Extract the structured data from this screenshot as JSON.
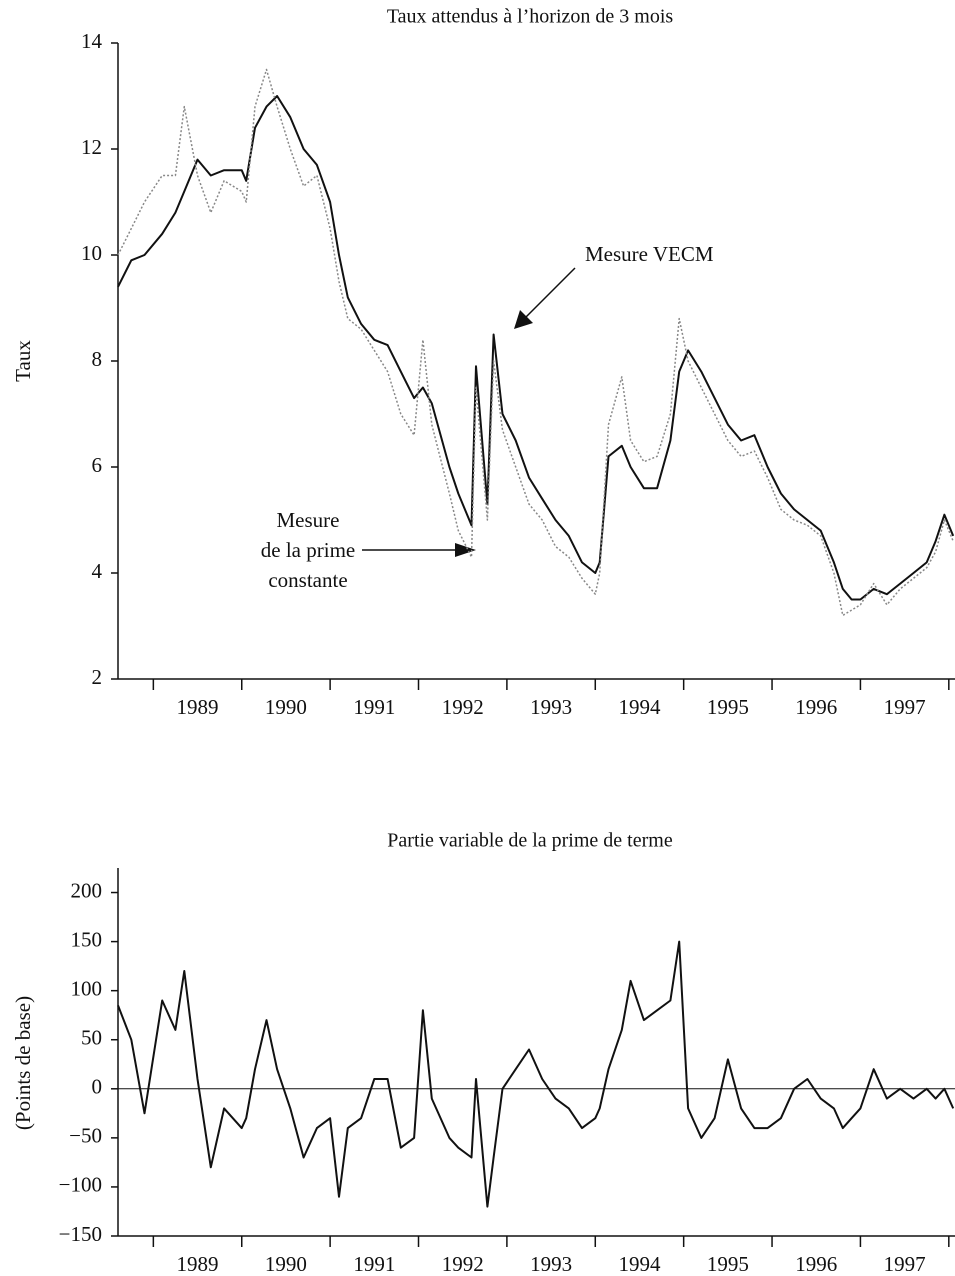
{
  "chart_data": [
    {
      "type": "line",
      "title": "Taux attendus à l’horizon de 3 mois",
      "ylabel": "Taux",
      "x": [
        1988.6,
        1988.75,
        1988.9,
        1989.1,
        1989.25,
        1989.35,
        1989.5,
        1989.65,
        1989.8,
        1990.0,
        1990.05,
        1990.15,
        1990.28,
        1990.4,
        1990.55,
        1990.7,
        1990.85,
        1991.0,
        1991.1,
        1991.2,
        1991.35,
        1991.5,
        1991.65,
        1991.8,
        1991.95,
        1992.05,
        1992.15,
        1992.35,
        1992.45,
        1992.6,
        1992.65,
        1992.78,
        1992.85,
        1992.95,
        1993.1,
        1993.25,
        1993.4,
        1993.55,
        1993.7,
        1993.85,
        1994.0,
        1994.05,
        1994.15,
        1994.3,
        1994.4,
        1994.55,
        1994.7,
        1994.85,
        1994.95,
        1995.05,
        1995.2,
        1995.35,
        1995.5,
        1995.65,
        1995.8,
        1995.95,
        1996.1,
        1996.25,
        1996.4,
        1996.55,
        1996.7,
        1996.8,
        1996.9,
        1997.0,
        1997.15,
        1997.3,
        1997.45,
        1997.6,
        1997.75,
        1997.85,
        1997.95,
        1998.05
      ],
      "xlim": [
        1988.6,
        1998.07
      ],
      "xticks": [
        {
          "value": 1989.5,
          "label": "1989"
        },
        {
          "value": 1990.5,
          "label": "1990"
        },
        {
          "value": 1991.5,
          "label": "1991"
        },
        {
          "value": 1992.5,
          "label": "1992"
        },
        {
          "value": 1993.5,
          "label": "1993"
        },
        {
          "value": 1994.5,
          "label": "1994"
        },
        {
          "value": 1995.5,
          "label": "1995"
        },
        {
          "value": 1996.5,
          "label": "1996"
        },
        {
          "value": 1997.5,
          "label": "1997"
        }
      ],
      "ylim": [
        2,
        14
      ],
      "yticks": [
        2,
        4,
        6,
        8,
        10,
        12,
        14
      ],
      "series": [
        {
          "name": "Mesure VECM",
          "color": "#111111",
          "style": "solid",
          "values": [
            9.4,
            9.9,
            10.0,
            10.4,
            10.8,
            11.2,
            11.8,
            11.5,
            11.6,
            11.6,
            11.4,
            12.4,
            12.8,
            13.0,
            12.6,
            12.0,
            11.7,
            11.0,
            10.0,
            9.2,
            8.7,
            8.4,
            8.3,
            7.8,
            7.3,
            7.5,
            7.2,
            6.0,
            5.5,
            4.9,
            7.9,
            5.3,
            8.5,
            7.0,
            6.5,
            5.8,
            5.4,
            5.0,
            4.7,
            4.2,
            4.0,
            4.2,
            6.2,
            6.4,
            6.0,
            5.6,
            5.6,
            6.5,
            7.8,
            8.2,
            7.8,
            7.3,
            6.8,
            6.5,
            6.6,
            6.0,
            5.5,
            5.2,
            5.0,
            4.8,
            4.2,
            3.7,
            3.5,
            3.5,
            3.7,
            3.6,
            3.8,
            4.0,
            4.2,
            4.6,
            5.1,
            4.7
          ]
        },
        {
          "name": "Mesure de la prime constante",
          "color": "#888888",
          "style": "dotted",
          "values": [
            10.0,
            10.5,
            11.0,
            11.5,
            11.5,
            12.8,
            11.5,
            10.8,
            11.4,
            11.2,
            11.0,
            12.8,
            13.5,
            12.8,
            12.0,
            11.3,
            11.5,
            10.5,
            9.5,
            8.8,
            8.6,
            8.2,
            7.8,
            7.0,
            6.6,
            8.4,
            6.8,
            5.5,
            4.8,
            4.3,
            7.5,
            5.0,
            8.0,
            6.7,
            6.0,
            5.3,
            5.0,
            4.5,
            4.3,
            3.9,
            3.6,
            4.0,
            6.8,
            7.7,
            6.5,
            6.1,
            6.2,
            7.0,
            8.8,
            8.0,
            7.5,
            7.0,
            6.5,
            6.2,
            6.3,
            5.8,
            5.2,
            5.0,
            4.9,
            4.7,
            4.0,
            3.2,
            3.3,
            3.4,
            3.8,
            3.4,
            3.7,
            3.9,
            4.1,
            4.4,
            5.0,
            4.6
          ]
        }
      ],
      "annotations": [
        {
          "lines": [
            "Mesure VECM"
          ]
        },
        {
          "lines": [
            "Mesure",
            "de la prime",
            "constante"
          ]
        }
      ]
    },
    {
      "type": "line",
      "title": "Partie variable de la prime de terme",
      "ylabel": "(Points de base)",
      "x": [
        1988.6,
        1988.75,
        1988.9,
        1989.1,
        1989.25,
        1989.35,
        1989.5,
        1989.65,
        1989.8,
        1990.0,
        1990.05,
        1990.15,
        1990.28,
        1990.4,
        1990.55,
        1990.7,
        1990.85,
        1991.0,
        1991.1,
        1991.2,
        1991.35,
        1991.5,
        1991.65,
        1991.8,
        1991.95,
        1992.05,
        1992.15,
        1992.35,
        1992.45,
        1992.6,
        1992.65,
        1992.78,
        1992.85,
        1992.95,
        1993.1,
        1993.25,
        1993.4,
        1993.55,
        1993.7,
        1993.85,
        1994.0,
        1994.05,
        1994.15,
        1994.3,
        1994.4,
        1994.55,
        1994.7,
        1994.85,
        1994.95,
        1995.05,
        1995.2,
        1995.35,
        1995.5,
        1995.65,
        1995.8,
        1995.95,
        1996.1,
        1996.25,
        1996.4,
        1996.55,
        1996.7,
        1996.8,
        1996.9,
        1997.0,
        1997.15,
        1997.3,
        1997.45,
        1997.6,
        1997.75,
        1997.85,
        1997.95,
        1998.05
      ],
      "xlim": [
        1988.6,
        1998.07
      ],
      "xticks": [
        {
          "value": 1989.5,
          "label": "1989"
        },
        {
          "value": 1990.5,
          "label": "1990"
        },
        {
          "value": 1991.5,
          "label": "1991"
        },
        {
          "value": 1992.5,
          "label": "1992"
        },
        {
          "value": 1993.5,
          "label": "1993"
        },
        {
          "value": 1994.5,
          "label": "1994"
        },
        {
          "value": 1995.5,
          "label": "1995"
        },
        {
          "value": 1996.5,
          "label": "1996"
        },
        {
          "value": 1997.5,
          "label": "1997"
        }
      ],
      "ylim": [
        -150,
        225
      ],
      "yticks": [
        {
          "value": -150,
          "label": "−150"
        },
        {
          "value": -100,
          "label": "−100"
        },
        {
          "value": -50,
          "label": "−50"
        },
        0,
        50,
        100,
        150,
        200
      ],
      "zero_line": true,
      "series": [
        {
          "color": "#111111",
          "style": "solid",
          "values": [
            85,
            50,
            -25,
            90,
            60,
            120,
            10,
            -80,
            -20,
            -40,
            -30,
            20,
            70,
            20,
            -20,
            -70,
            -40,
            -30,
            -110,
            -40,
            -30,
            10,
            10,
            -60,
            -50,
            80,
            -10,
            -50,
            -60,
            -70,
            10,
            -120,
            -70,
            0,
            20,
            40,
            10,
            -10,
            -20,
            -40,
            -30,
            -20,
            20,
            60,
            110,
            70,
            80,
            90,
            150,
            -20,
            -50,
            -30,
            30,
            -20,
            -40,
            -40,
            -30,
            0,
            10,
            -10,
            -20,
            -40,
            -30,
            -20,
            20,
            -10,
            0,
            -10,
            0,
            -10,
            0,
            -20
          ]
        }
      ]
    }
  ]
}
